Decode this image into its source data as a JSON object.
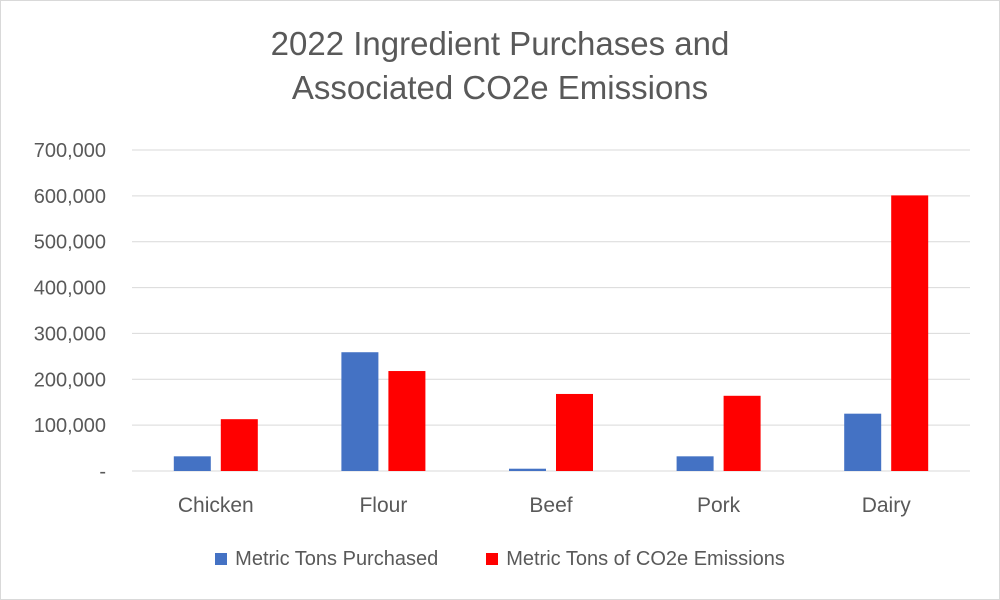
{
  "chart_data": {
    "type": "bar",
    "title_lines": [
      "2022 Ingredient Purchases and",
      "Associated CO2e Emissions"
    ],
    "categories": [
      "Chicken",
      "Flour",
      "Beef",
      "Pork",
      "Dairy"
    ],
    "series": [
      {
        "name": "Metric Tons Purchased",
        "color": "#4472c4",
        "values": [
          32000,
          259000,
          5000,
          32000,
          125000
        ]
      },
      {
        "name": "Metric Tons of CO2e Emissions",
        "color": "#ff0000",
        "values": [
          113000,
          218000,
          168000,
          164000,
          601000
        ]
      }
    ],
    "ylim": [
      0,
      700000
    ],
    "y_ticks": [
      0,
      100000,
      200000,
      300000,
      400000,
      500000,
      600000,
      700000
    ],
    "y_tick_labels": [
      "-",
      "100,000",
      "200,000",
      "300,000",
      "400,000",
      "500,000",
      "600,000",
      "700,000"
    ],
    "grid": true,
    "legend_position": "bottom"
  }
}
